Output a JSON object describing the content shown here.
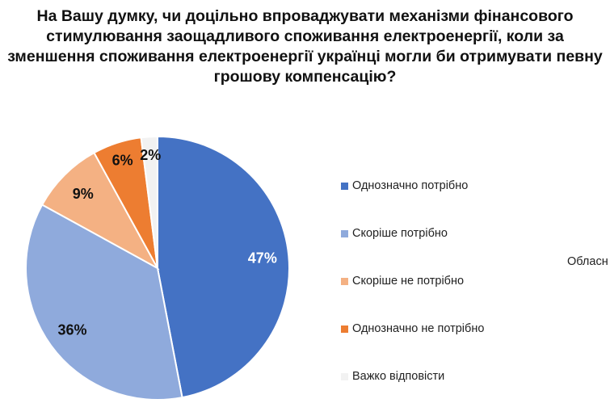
{
  "chart_data": {
    "type": "pie",
    "title_lines": [
      "На Вашу думку, чи доцільно впроваджувати механізми фінансового",
      "стимулювання заощадливого споживання електроенергії, коли за",
      "зменшення споживання електроенергії українці могли би отримувати певну",
      "грошову компенсацію?"
    ],
    "categories": [
      "Однозначно потрібно",
      "Скоріше потрібно",
      "Скоріше не потрібно",
      "Однозначно не потрібно",
      "Важко відповісти"
    ],
    "values": [
      47,
      36,
      9,
      6,
      2
    ],
    "labels": [
      "47%",
      "36%",
      "9%",
      "6%",
      "2%"
    ],
    "colors": [
      "#4472C4",
      "#8FAADC",
      "#F4B183",
      "#ED7D31",
      "#F2F2F2"
    ],
    "label_colors": [
      "#ffffff",
      "#111111",
      "#111111",
      "#111111",
      "#111111"
    ],
    "legend_position": "right",
    "extra_text": "Обласн"
  }
}
